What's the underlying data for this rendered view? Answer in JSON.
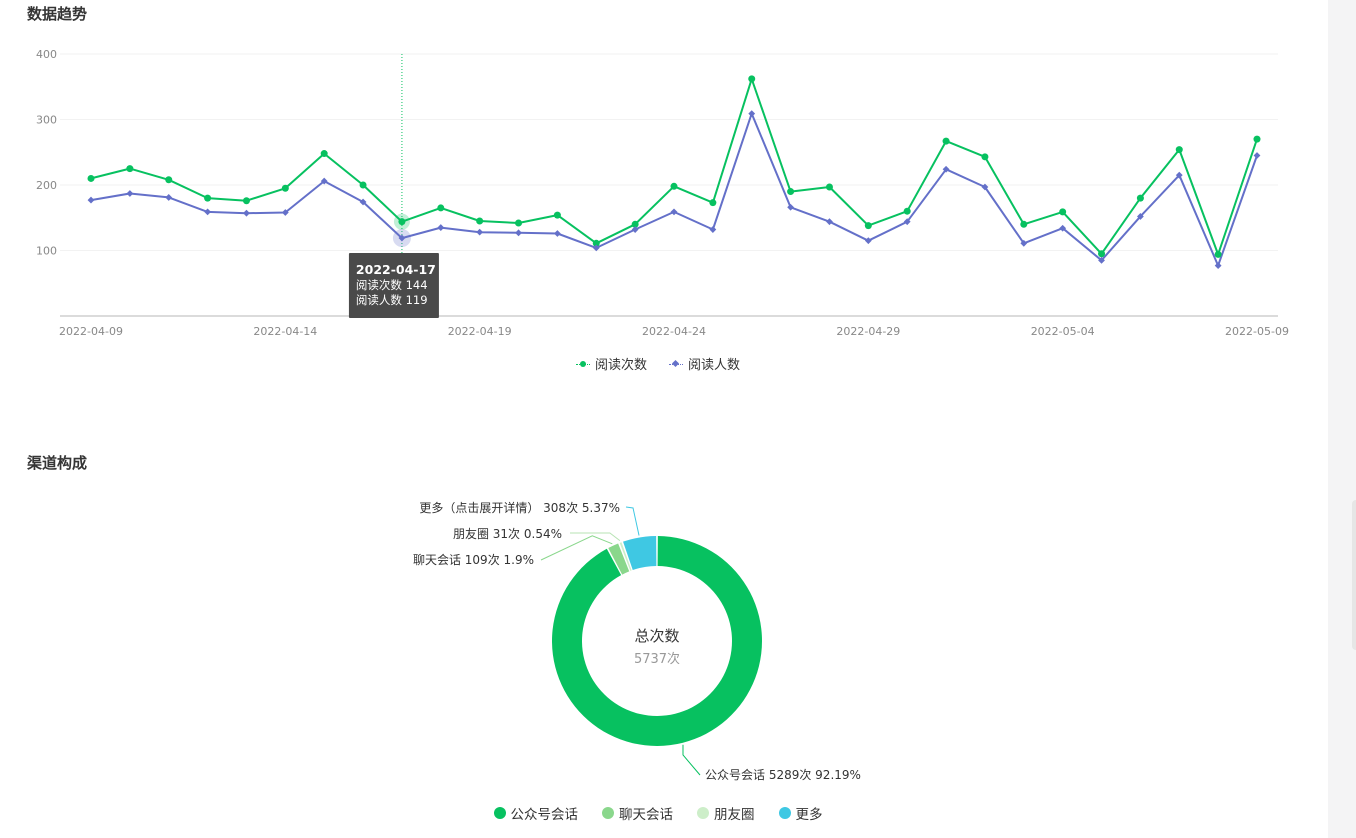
{
  "sections": {
    "trend_title": "数据趋势",
    "channel_title": "渠道构成"
  },
  "colors": {
    "reads": "#07c160",
    "readers": "#6470c9",
    "axis_text": "#888888",
    "tooltip_bg": "#4a4a4a",
    "grid": "#f2f2f2"
  },
  "legend": {
    "line": [
      {
        "name": "阅读次数",
        "color": "#07c160",
        "marker": "circle"
      },
      {
        "name": "阅读人数",
        "color": "#6470c9",
        "marker": "diamond"
      }
    ],
    "pie": [
      {
        "name": "公众号会话",
        "color": "#07c160"
      },
      {
        "name": "聊天会话",
        "color": "#8ad78c"
      },
      {
        "name": "朋友圈",
        "color": "#cdeec9"
      },
      {
        "name": "更多",
        "color": "#3fc8e3"
      }
    ]
  },
  "tooltip": {
    "date": "2022-04-17",
    "line1": "阅读次数 144",
    "line2": "阅读人数 119",
    "index": 8
  },
  "chart_data": [
    {
      "type": "line",
      "title": "数据趋势",
      "ylim": [
        0,
        400
      ],
      "y_ticks": [
        100,
        200,
        300,
        400
      ],
      "x_tick_labels": [
        "2022-04-09",
        "2022-04-14",
        "2022-04-19",
        "2022-04-24",
        "2022-04-29",
        "2022-05-04",
        "2022-05-09"
      ],
      "x": [
        "2022-04-09",
        "2022-04-10",
        "2022-04-11",
        "2022-04-12",
        "2022-04-13",
        "2022-04-14",
        "2022-04-15",
        "2022-04-16",
        "2022-04-17",
        "2022-04-18",
        "2022-04-19",
        "2022-04-20",
        "2022-04-21",
        "2022-04-22",
        "2022-04-23",
        "2022-04-24",
        "2022-04-25",
        "2022-04-26",
        "2022-04-27",
        "2022-04-28",
        "2022-04-29",
        "2022-04-30",
        "2022-05-01",
        "2022-05-02",
        "2022-05-03",
        "2022-05-04",
        "2022-05-05",
        "2022-05-06",
        "2022-05-07",
        "2022-05-08",
        "2022-05-09"
      ],
      "grid": true,
      "legend_position": "bottom",
      "series": [
        {
          "name": "阅读次数",
          "values": [
            210,
            225,
            208,
            180,
            176,
            195,
            248,
            200,
            144,
            165,
            145,
            142,
            154,
            111,
            140,
            198,
            173,
            362,
            190,
            197,
            138,
            160,
            267,
            243,
            140,
            159,
            95,
            180,
            254,
            94,
            270
          ]
        },
        {
          "name": "阅读人数",
          "values": [
            177,
            187,
            181,
            159,
            157,
            158,
            206,
            174,
            119,
            135,
            128,
            127,
            126,
            104,
            132,
            159,
            132,
            309,
            166,
            144,
            115,
            144,
            224,
            197,
            111,
            134,
            85,
            152,
            215,
            77,
            245
          ]
        }
      ]
    },
    {
      "type": "pie",
      "title": "渠道构成",
      "center_label": "总次数",
      "center_value": "5737次",
      "legend_position": "bottom",
      "slices": [
        {
          "name": "公众号会话",
          "value": 5289,
          "percent": 92.19,
          "label": "公众号会话 5289次 92.19%"
        },
        {
          "name": "聊天会话",
          "value": 109,
          "percent": 1.9,
          "label": "聊天会话 109次 1.9%"
        },
        {
          "name": "朋友圈",
          "value": 31,
          "percent": 0.54,
          "label": "朋友圈 31次 0.54%"
        },
        {
          "name": "更多",
          "value": 308,
          "percent": 5.37,
          "label": "更多（点击展开详情） 308次 5.37%"
        }
      ]
    }
  ]
}
